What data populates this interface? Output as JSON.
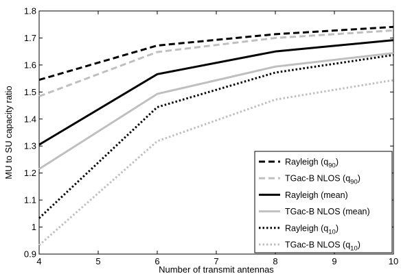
{
  "chart_data": {
    "type": "line",
    "title": "",
    "xlabel": "Number of transmit antennas",
    "ylabel": "MU to SU capacity ratio",
    "xlim": [
      4,
      10
    ],
    "ylim": [
      0.9,
      1.8
    ],
    "xticks": [
      4,
      5,
      6,
      7,
      8,
      9,
      10
    ],
    "yticks": [
      0.9,
      1,
      1.1,
      1.2,
      1.3,
      1.4,
      1.5,
      1.6,
      1.7,
      1.8
    ],
    "ytick_labels": [
      "0.9",
      "1",
      "1.1",
      "1.2",
      "1.3",
      "1.4",
      "1.5",
      "1.6",
      "1.7",
      "1.8"
    ],
    "grid": false,
    "legend_position": "bottom-right",
    "x": [
      4,
      6,
      8,
      10
    ],
    "series": [
      {
        "name_main": "Rayleigh (q",
        "name_sub": "90",
        "name_end": ")",
        "color": "#000000",
        "dash": "dashed",
        "values": [
          1.545,
          1.672,
          1.714,
          1.741
        ]
      },
      {
        "name_main": "TGac-B NLOS (q",
        "name_sub": "90",
        "name_end": ")",
        "color": "#bfbfbf",
        "dash": "dashed",
        "values": [
          1.484,
          1.648,
          1.7,
          1.728
        ]
      },
      {
        "name_main": "Rayleigh (mean)",
        "name_sub": "",
        "name_end": "",
        "color": "#000000",
        "dash": "solid",
        "values": [
          1.305,
          1.566,
          1.65,
          1.692
        ]
      },
      {
        "name_main": "TGac-B NLOS (mean)",
        "name_sub": "",
        "name_end": "",
        "color": "#bfbfbf",
        "dash": "solid",
        "values": [
          1.215,
          1.493,
          1.594,
          1.644
        ]
      },
      {
        "name_main": "Rayleigh (q",
        "name_sub": "10",
        "name_end": ")",
        "color": "#000000",
        "dash": "dotted",
        "values": [
          1.033,
          1.444,
          1.572,
          1.637
        ]
      },
      {
        "name_main": "TGac-B NLOS (q",
        "name_sub": "10",
        "name_end": ")",
        "color": "#bfbfbf",
        "dash": "dotted",
        "values": [
          0.933,
          1.318,
          1.472,
          1.544
        ]
      }
    ]
  }
}
